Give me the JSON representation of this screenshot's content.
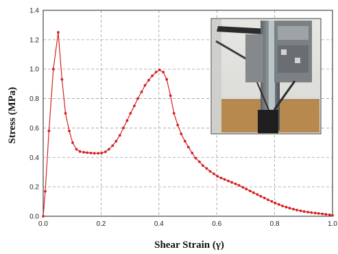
{
  "chart_data": {
    "type": "line",
    "xlabel": "Shear Strain (γ)",
    "ylabel": "Stress (MPa)",
    "xlim": [
      0,
      1.0
    ],
    "ylim": [
      0,
      1.4
    ],
    "grid": true,
    "x_ticks": [
      "0.0",
      "0.2",
      "0.4",
      "0.6",
      "0.8",
      "1.0"
    ],
    "y_ticks": [
      "0.0",
      "0.2",
      "0.4",
      "0.6",
      "0.8",
      "1.0",
      "1.2",
      "1.4"
    ],
    "series_color": "#d42020",
    "inset": "photo-of-test-fixture",
    "series": [
      {
        "x": [
          0.0,
          0.007,
          0.02,
          0.035,
          0.052,
          0.065,
          0.077,
          0.09,
          0.102,
          0.115,
          0.127,
          0.14,
          0.152,
          0.165,
          0.177,
          0.19,
          0.202,
          0.215,
          0.227,
          0.24,
          0.252,
          0.265,
          0.277,
          0.29,
          0.302,
          0.315,
          0.327,
          0.34,
          0.352,
          0.365,
          0.377,
          0.39,
          0.402,
          0.415,
          0.427,
          0.44,
          0.452,
          0.465,
          0.477,
          0.49,
          0.502,
          0.515,
          0.527,
          0.54,
          0.552,
          0.565,
          0.577,
          0.59,
          0.602,
          0.615,
          0.627,
          0.64,
          0.652,
          0.665,
          0.677,
          0.69,
          0.702,
          0.715,
          0.727,
          0.74,
          0.752,
          0.765,
          0.777,
          0.79,
          0.802,
          0.815,
          0.827,
          0.84,
          0.852,
          0.865,
          0.877,
          0.89,
          0.902,
          0.915,
          0.927,
          0.94,
          0.952,
          0.965,
          0.977,
          0.99,
          1.0
        ],
        "y": [
          0.0,
          0.17,
          0.58,
          1.0,
          1.25,
          0.93,
          0.7,
          0.58,
          0.5,
          0.455,
          0.44,
          0.435,
          0.432,
          0.43,
          0.428,
          0.428,
          0.43,
          0.438,
          0.455,
          0.48,
          0.51,
          0.55,
          0.6,
          0.65,
          0.7,
          0.75,
          0.8,
          0.845,
          0.89,
          0.925,
          0.955,
          0.98,
          0.995,
          0.98,
          0.93,
          0.82,
          0.7,
          0.62,
          0.56,
          0.51,
          0.47,
          0.43,
          0.395,
          0.37,
          0.345,
          0.325,
          0.305,
          0.288,
          0.272,
          0.26,
          0.25,
          0.24,
          0.23,
          0.22,
          0.21,
          0.197,
          0.185,
          0.172,
          0.16,
          0.148,
          0.136,
          0.124,
          0.112,
          0.101,
          0.09,
          0.08,
          0.07,
          0.062,
          0.055,
          0.048,
          0.042,
          0.037,
          0.032,
          0.028,
          0.025,
          0.022,
          0.019,
          0.016,
          0.013,
          0.01,
          0.005
        ]
      }
    ]
  }
}
